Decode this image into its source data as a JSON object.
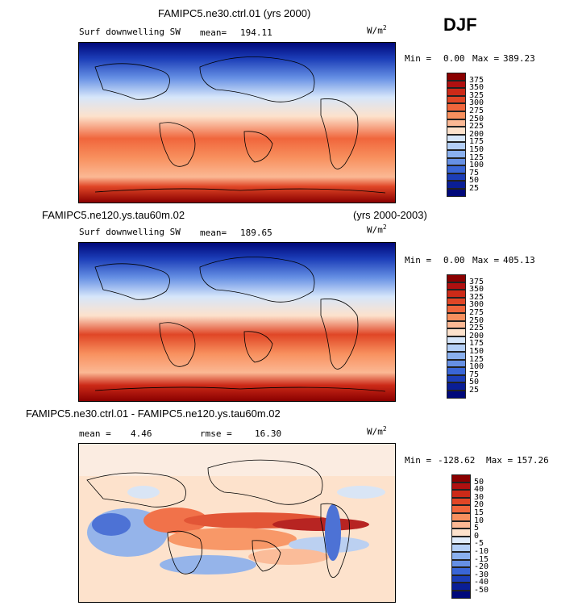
{
  "season": "DJF",
  "panels": [
    {
      "case_name": "FAMIPC5.ne30.ctrl.01",
      "years": "(yrs 2000)",
      "title_line": "FAMIPC5.ne30.ctrl.01 (yrs 2000)",
      "variable": "Surf downwelling SW",
      "mean_label": "mean=",
      "mean_value": "194.11",
      "units": "W/m",
      "units_exp": "2",
      "min_label": "Min =",
      "min_value": "0.00",
      "max_label": "Max =",
      "max_value": "389.23",
      "colorbar_labels": [
        "375",
        "350",
        "325",
        "300",
        "275",
        "250",
        "225",
        "200",
        "175",
        "150",
        "125",
        "100",
        "75",
        "50",
        "25"
      ]
    },
    {
      "case_name": "FAMIPC5.ne120.ys.tau60m.02",
      "years": "(yrs 2000-2003)",
      "variable": "Surf downwelling SW",
      "mean_label": "mean=",
      "mean_value": "189.65",
      "units": "W/m",
      "units_exp": "2",
      "min_label": "Min =",
      "min_value": "0.00",
      "max_label": "Max =",
      "max_value": "405.13",
      "colorbar_labels": [
        "375",
        "350",
        "325",
        "300",
        "275",
        "250",
        "225",
        "200",
        "175",
        "150",
        "125",
        "100",
        "75",
        "50",
        "25"
      ]
    },
    {
      "title_line": "FAMIPC5.ne30.ctrl.01 - FAMIPC5.ne120.ys.tau60m.02",
      "mean_label": "mean =",
      "mean_value": "4.46",
      "rmse_label": "rmse =",
      "rmse_value": "16.30",
      "units": "W/m",
      "units_exp": "2",
      "min_label": "Min =",
      "min_value": "-128.62",
      "max_label": "Max =",
      "max_value": "157.26",
      "colorbar_labels": [
        "50",
        "40",
        "30",
        "20",
        "15",
        "10",
        "5",
        "0",
        "-5",
        "-10",
        "-15",
        "-20",
        "-30",
        "-40",
        "-50"
      ]
    }
  ],
  "colors": {
    "abs_palette": [
      "#8a0000",
      "#b01010",
      "#cc2a18",
      "#e04626",
      "#f0663c",
      "#f8905e",
      "#fbb894",
      "#fde2cc",
      "#d6e6fa",
      "#b4cff6",
      "#8ab0ee",
      "#6690e4",
      "#3a66d6",
      "#1c3eb8",
      "#0a1e96",
      "#00087a"
    ],
    "diff_palette": [
      "#8a0000",
      "#b01010",
      "#cc2a18",
      "#e04626",
      "#f0663c",
      "#f8905e",
      "#fbb894",
      "#fde2cc",
      "#e0ecfb",
      "#b4cff6",
      "#8ab0ee",
      "#6690e4",
      "#3a66d6",
      "#1c3eb8",
      "#0a1e96",
      "#00087a"
    ]
  }
}
